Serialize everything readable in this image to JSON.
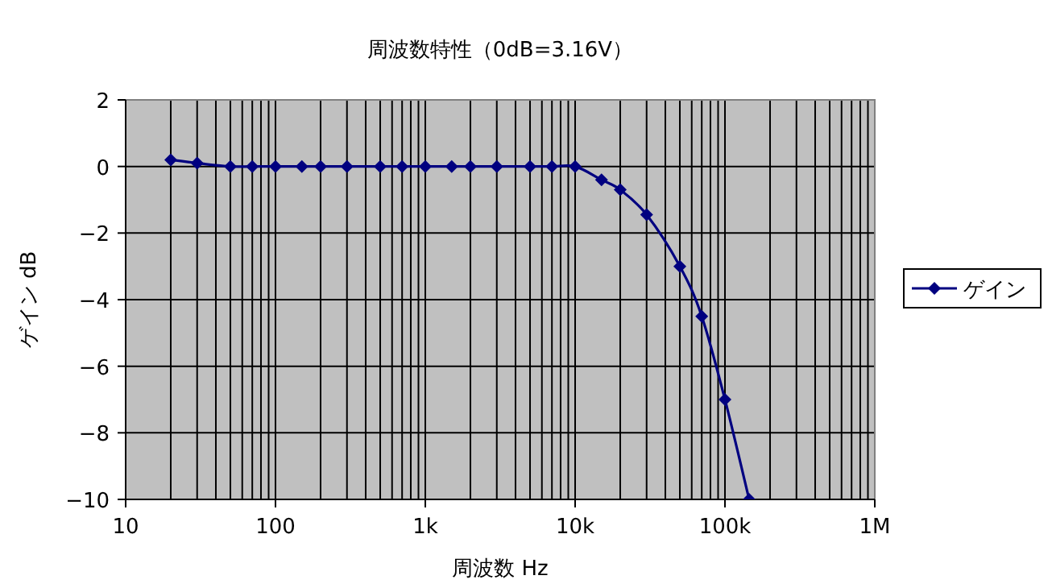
{
  "chart_data": {
    "type": "line",
    "title": "周波数特性（0dB=3.16V）",
    "xlabel": "周波数 Hz",
    "ylabel": "ゲイン dB",
    "log": "x",
    "x": [
      20,
      30,
      50,
      70,
      100,
      150,
      200,
      300,
      500,
      700,
      1000,
      1500,
      2000,
      3000,
      5000,
      7000,
      10000,
      15000,
      20000,
      30000,
      50000,
      70000,
      100000,
      145000
    ],
    "series": [
      {
        "name": "ゲイン",
        "color": "#000080",
        "values": [
          0.2,
          0.1,
          0,
          0,
          0,
          0,
          0,
          0,
          0,
          0,
          0,
          0,
          0,
          0,
          0,
          0,
          0,
          -0.4,
          -0.7,
          -1.45,
          -3.0,
          -4.5,
          -7.0,
          -10
        ]
      }
    ],
    "xlim": [
      10,
      1000000
    ],
    "xticks": [
      10,
      100,
      {
        "value": 1000,
        "label": "1k"
      },
      {
        "value": 10000,
        "label": "10k"
      },
      {
        "value": 100000,
        "label": "100k"
      },
      {
        "value": 1000000,
        "label": "1M"
      }
    ],
    "ylim": [
      -10,
      2
    ],
    "yticks": [
      -10,
      -8,
      -6,
      -4,
      -2,
      0,
      2
    ],
    "grid": true,
    "legend": "right",
    "marker": "diamond",
    "line_style": "solid"
  }
}
